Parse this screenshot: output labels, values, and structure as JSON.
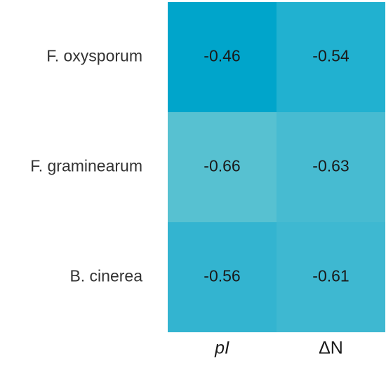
{
  "chart_data": {
    "type": "heatmap",
    "rows": [
      "F. oxysporum",
      "F. graminearum",
      "B. cinerea"
    ],
    "columns": [
      {
        "label": "pI",
        "italic": true
      },
      {
        "label": "ΔN",
        "italic": false
      }
    ],
    "values": [
      [
        -0.46,
        -0.54
      ],
      [
        -0.66,
        -0.63
      ],
      [
        -0.56,
        -0.61
      ]
    ],
    "cell_labels": [
      [
        "-0.46",
        "-0.54"
      ],
      [
        "-0.66",
        "-0.63"
      ],
      [
        "-0.56",
        "-0.61"
      ]
    ],
    "cell_colors": [
      [
        "#00A5CB",
        "#21B1D0"
      ],
      [
        "#57C1D1",
        "#47BBD1"
      ],
      [
        "#33B4D0",
        "#3EB8D1"
      ]
    ]
  }
}
